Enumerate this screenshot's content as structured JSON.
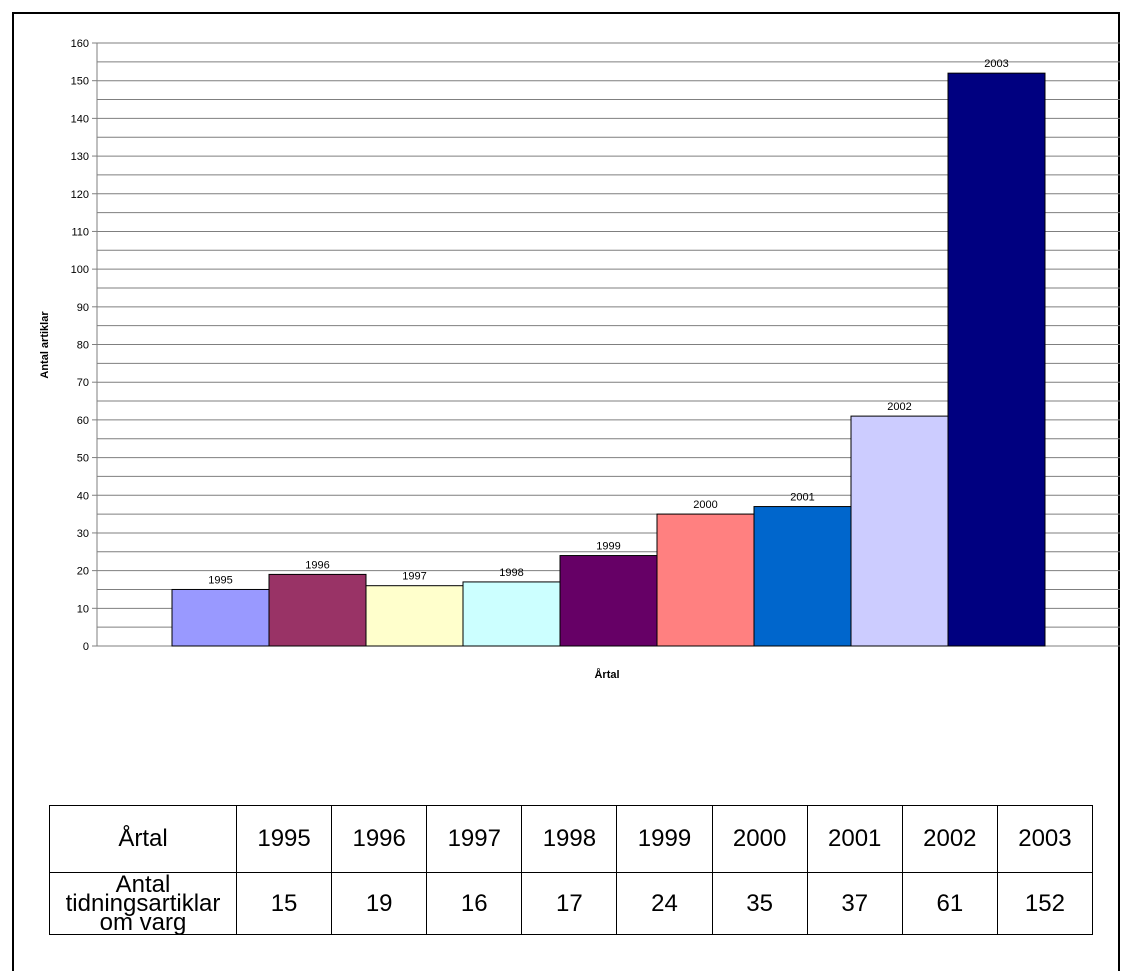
{
  "chart_data": {
    "type": "bar",
    "categories": [
      "1995",
      "1996",
      "1997",
      "1998",
      "1999",
      "2000",
      "2001",
      "2002",
      "2003"
    ],
    "values": [
      15,
      19,
      16,
      17,
      24,
      35,
      37,
      61,
      152
    ],
    "bar_colors": [
      "#9999ff",
      "#993366",
      "#ffffcc",
      "#ccffff",
      "#660066",
      "#ff8080",
      "#0066cc",
      "#ccccff",
      "#000080"
    ],
    "xlabel": "Årtal",
    "ylabel": "Antal artiklar",
    "ylim": [
      0,
      160
    ],
    "y_major_step": 10,
    "y_minor_step": 5,
    "grid": true,
    "legend": "none",
    "data_labels": "category name above each bar"
  },
  "table": {
    "header_label": "Årtal",
    "row_label": "Antal tidningsartiklar om varg",
    "columns": [
      "1995",
      "1996",
      "1997",
      "1998",
      "1999",
      "2000",
      "2001",
      "2002",
      "2003"
    ],
    "values": [
      "15",
      "19",
      "16",
      "17",
      "24",
      "35",
      "37",
      "61",
      "152"
    ]
  }
}
